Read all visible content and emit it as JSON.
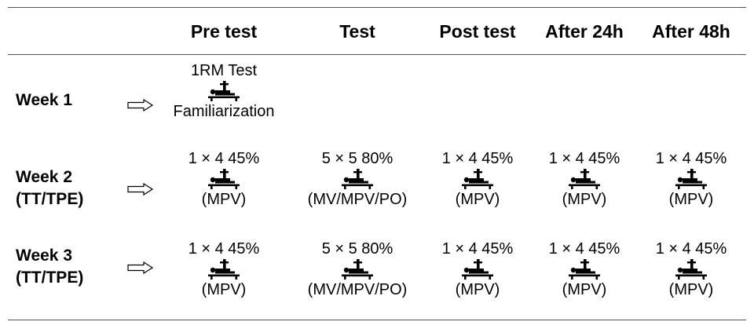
{
  "headers": [
    "",
    "Pre test",
    "Test",
    "Post test",
    "After 24h",
    "After 48h"
  ],
  "rows": [
    {
      "label": [
        "Week 1"
      ],
      "cells": [
        {
          "top": "1RM Test",
          "bottom": "Familiarization",
          "icon": "bench-press-icon"
        },
        null,
        null,
        null,
        null
      ]
    },
    {
      "label": [
        "Week 2",
        "(TT/TPE)"
      ],
      "cells": [
        {
          "top": "1 × 4 45%",
          "bottom": "(MPV)",
          "icon": "bench-press-icon"
        },
        {
          "top": "5 × 5 80%",
          "bottom": "(MV/MPV/PO)",
          "icon": "bench-press-icon"
        },
        {
          "top": "1 × 4 45%",
          "bottom": "(MPV)",
          "icon": "bench-press-icon"
        },
        {
          "top": "1 × 4 45%",
          "bottom": "(MPV)",
          "icon": "bench-press-icon"
        },
        {
          "top": "1 × 4 45%",
          "bottom": "(MPV)",
          "icon": "bench-press-icon"
        }
      ]
    },
    {
      "label": [
        "Week 3",
        "(TT/TPE)"
      ],
      "cells": [
        {
          "top": "1 × 4 45%",
          "bottom": "(MPV)",
          "icon": "bench-press-icon"
        },
        {
          "top": "5 × 5 80%",
          "bottom": "(MV/MPV/PO)",
          "icon": "bench-press-icon"
        },
        {
          "top": "1 × 4 45%",
          "bottom": "(MPV)",
          "icon": "bench-press-icon"
        },
        {
          "top": "1 × 4 45%",
          "bottom": "(MPV)",
          "icon": "bench-press-icon"
        },
        {
          "top": "1 × 4 45%",
          "bottom": "(MPV)",
          "icon": "bench-press-icon"
        }
      ]
    }
  ],
  "icons": {
    "row_arrow": "outline-right-arrow-icon"
  }
}
